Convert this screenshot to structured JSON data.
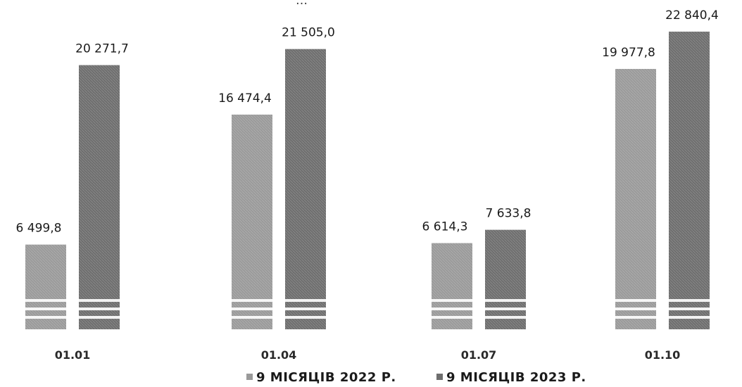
{
  "chart_data": {
    "type": "bar",
    "title_fragment": "…",
    "categories": [
      "01.01",
      "01.04",
      "01.07",
      "01.10"
    ],
    "series": [
      {
        "name": "9 МІСЯЦІВ 2022 Р.",
        "values": [
          6499.8,
          16474.4,
          6614.3,
          19977.8
        ],
        "labels": [
          "6 499,8",
          "16 474,4",
          "6 614,3",
          "19 977,8"
        ],
        "color": "#9a9a9a"
      },
      {
        "name": "9 МІСЯЦІВ 2023 Р.",
        "values": [
          20271.7,
          21505.0,
          7633.8,
          22840.4
        ],
        "labels": [
          "20 271,7",
          "21 505,0",
          "7 633,8",
          "22 840,4"
        ],
        "color": "#6e6e6e"
      }
    ],
    "ylim": [
      0,
      23000
    ],
    "grid": false,
    "legend": "bottom"
  }
}
